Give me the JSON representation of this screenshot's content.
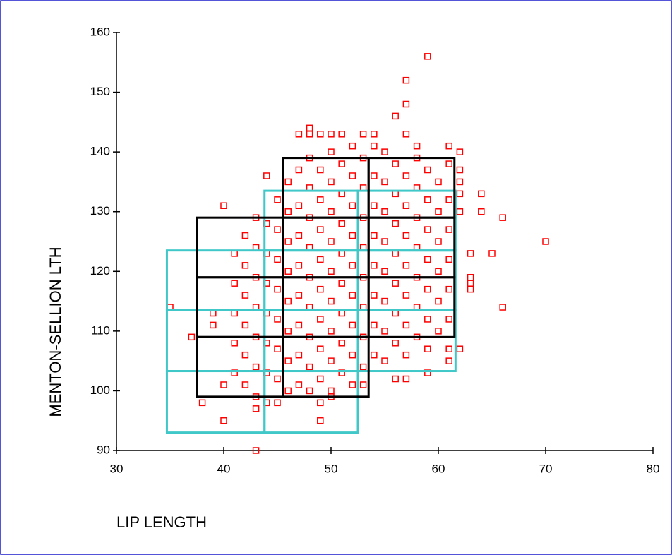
{
  "chart_data": {
    "type": "scatter",
    "xlabel": "LIP LENGTH",
    "ylabel": "MENTON-SELLION LTH",
    "xlim": [
      30,
      80
    ],
    "xticks": [
      30,
      40,
      50,
      60,
      70,
      80
    ],
    "ylim": [
      90,
      160
    ],
    "yticks": [
      90,
      100,
      110,
      120,
      130,
      140,
      150,
      160
    ],
    "color": "#ff0000",
    "x": [
      59,
      57,
      57,
      56,
      57,
      58,
      70,
      66,
      66,
      65,
      64,
      64,
      63,
      63,
      63,
      63,
      62,
      61,
      61,
      59,
      57,
      56,
      53,
      50,
      49,
      49,
      43,
      43,
      40,
      38,
      35,
      37,
      40,
      40,
      39,
      39,
      48,
      48,
      49,
      50,
      51,
      53,
      54,
      47,
      62,
      61,
      62,
      62,
      62,
      62,
      41,
      41,
      41,
      41,
      41,
      42,
      42,
      42,
      42,
      42,
      42,
      43,
      43,
      43,
      43,
      43,
      43,
      43,
      44,
      44,
      44,
      44,
      44,
      44,
      44,
      44,
      45,
      45,
      45,
      45,
      45,
      45,
      45,
      45,
      46,
      46,
      46,
      46,
      46,
      46,
      46,
      46,
      47,
      47,
      47,
      47,
      47,
      47,
      47,
      47,
      48,
      48,
      48,
      48,
      48,
      48,
      48,
      48,
      48,
      49,
      49,
      49,
      49,
      49,
      49,
      49,
      49,
      50,
      50,
      50,
      50,
      50,
      50,
      50,
      50,
      50,
      51,
      51,
      51,
      51,
      51,
      51,
      51,
      51,
      52,
      52,
      52,
      52,
      52,
      52,
      52,
      52,
      52,
      53,
      53,
      53,
      53,
      53,
      53,
      53,
      53,
      54,
      54,
      54,
      54,
      54,
      54,
      54,
      54,
      55,
      55,
      55,
      55,
      55,
      55,
      55,
      55,
      56,
      56,
      56,
      56,
      56,
      56,
      56,
      57,
      57,
      57,
      57,
      57,
      57,
      57,
      58,
      58,
      58,
      58,
      58,
      58,
      58,
      59,
      59,
      59,
      59,
      59,
      59,
      59,
      60,
      60,
      60,
      60,
      60,
      60,
      61,
      61,
      61,
      61,
      61,
      61
    ],
    "values": [
      156,
      152,
      148,
      146,
      143,
      141,
      125,
      129,
      114,
      123,
      133,
      130,
      123,
      119,
      118,
      117,
      107,
      105,
      107,
      103,
      102,
      102,
      101,
      99,
      98,
      95,
      97,
      90,
      95,
      98,
      114,
      109,
      131,
      101,
      113,
      111,
      144,
      143,
      143,
      143,
      143,
      143,
      143,
      143,
      140,
      141,
      137,
      135,
      133,
      130,
      103,
      108,
      113,
      118,
      123,
      101,
      106,
      111,
      116,
      121,
      126,
      99,
      104,
      109,
      114,
      119,
      124,
      129,
      98,
      103,
      108,
      113,
      118,
      123,
      128,
      136,
      98,
      102,
      107,
      112,
      117,
      122,
      127,
      132,
      100,
      105,
      110,
      115,
      120,
      125,
      130,
      135,
      101,
      106,
      111,
      116,
      121,
      126,
      131,
      137,
      100,
      104,
      109,
      114,
      119,
      124,
      129,
      134,
      139,
      102,
      107,
      112,
      117,
      122,
      127,
      132,
      137,
      100,
      105,
      110,
      115,
      120,
      125,
      130,
      135,
      140,
      103,
      108,
      113,
      118,
      123,
      128,
      133,
      138,
      101,
      106,
      111,
      116,
      121,
      126,
      131,
      136,
      141,
      104,
      109,
      114,
      119,
      124,
      129,
      134,
      139,
      106,
      111,
      116,
      121,
      126,
      131,
      136,
      141,
      105,
      110,
      115,
      120,
      125,
      130,
      135,
      140,
      108,
      113,
      118,
      123,
      128,
      133,
      138,
      106,
      111,
      116,
      121,
      126,
      131,
      136,
      109,
      114,
      119,
      124,
      129,
      134,
      139,
      107,
      112,
      117,
      122,
      127,
      132,
      137,
      110,
      115,
      120,
      125,
      130,
      135,
      112,
      117,
      122,
      127,
      132,
      138
    ],
    "boxes": [
      {
        "color": "#000000",
        "cells": [
          [
            37.5,
            45.5,
            99,
            109
          ],
          [
            37.5,
            45.5,
            109,
            119
          ],
          [
            37.5,
            45.5,
            119,
            129
          ],
          [
            45.5,
            53.5,
            99,
            109
          ],
          [
            45.5,
            53.5,
            109,
            119
          ],
          [
            45.5,
            53.5,
            119,
            129
          ],
          [
            45.5,
            53.5,
            129,
            139
          ],
          [
            53.5,
            61.5,
            109,
            119
          ],
          [
            53.5,
            61.5,
            119,
            129
          ],
          [
            53.5,
            61.5,
            129,
            139
          ]
        ]
      },
      {
        "color": "#40c8c8",
        "cells": [
          [
            34.7,
            43.8,
            93,
            103.3
          ],
          [
            34.7,
            43.8,
            103.3,
            113.5
          ],
          [
            34.7,
            43.8,
            113.5,
            123.5
          ],
          [
            43.8,
            52.5,
            93,
            103.3
          ],
          [
            43.8,
            52.5,
            103.3,
            113.5
          ],
          [
            43.8,
            52.5,
            113.5,
            123.5
          ],
          [
            43.8,
            52.5,
            123.5,
            133.5
          ],
          [
            52.5,
            61.6,
            103.3,
            113.5
          ],
          [
            52.5,
            61.6,
            113.5,
            123.5
          ],
          [
            52.5,
            61.6,
            123.5,
            133.5
          ]
        ]
      }
    ]
  }
}
